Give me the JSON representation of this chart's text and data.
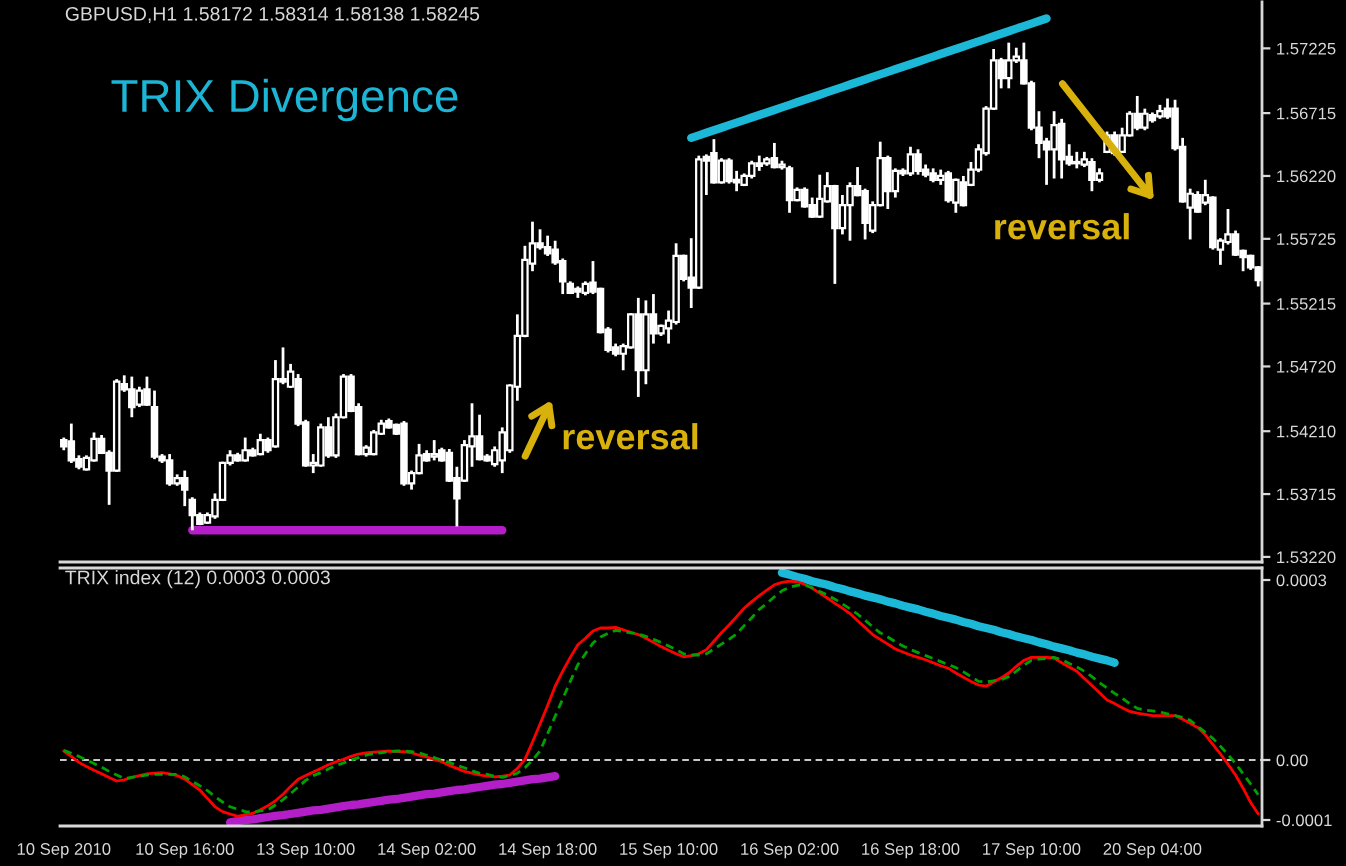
{
  "chart_data": [
    {
      "type": "candlestick",
      "title": "GBPUSD,H1 1.58172 1.58314 1.58138 1.58245",
      "subtitle": "TRIX Divergence",
      "color": "#ffffff",
      "categories": [
        null,
        null,
        null,
        null,
        null,
        null,
        null,
        null,
        null,
        null,
        null,
        null,
        null,
        null,
        null,
        null,
        null,
        null,
        null,
        null,
        null,
        null,
        null,
        null,
        null,
        null,
        null,
        null,
        null,
        null,
        null,
        null,
        null,
        null,
        null,
        null,
        null,
        null,
        null,
        null,
        null,
        null,
        null,
        null,
        null,
        null,
        null,
        null,
        null,
        null,
        null,
        null,
        null,
        null,
        null,
        null,
        null,
        null,
        null,
        null,
        null,
        null,
        null,
        null,
        null,
        null,
        null,
        null,
        null,
        null,
        null,
        null,
        null,
        null,
        null,
        null,
        null,
        null,
        null,
        null,
        null,
        null,
        null,
        null,
        null,
        null,
        null,
        null,
        null,
        null,
        null,
        null,
        null,
        null,
        null,
        null,
        null,
        null,
        null,
        null,
        null,
        null,
        null,
        null,
        null,
        null,
        null,
        null,
        null,
        null,
        null,
        null,
        null,
        null,
        null,
        null,
        null,
        null,
        null,
        null,
        null,
        null,
        null,
        null,
        null,
        null,
        null,
        null,
        null,
        null,
        null,
        null,
        null,
        null,
        null,
        null,
        null,
        null,
        null,
        null,
        null,
        null,
        null,
        null,
        null,
        null,
        null,
        null,
        null,
        null,
        null,
        null,
        null,
        null,
        null,
        null,
        null,
        null,
        null
      ],
      "ohlc": [
        [
          1.5414,
          1.5416,
          1.5406,
          1.5409
        ],
        [
          1.5413,
          1.5427,
          1.5396,
          1.5398
        ],
        [
          1.5399,
          1.5402,
          1.5391,
          1.5393
        ],
        [
          1.5391,
          1.5402,
          1.539,
          1.54
        ],
        [
          1.5398,
          1.542,
          1.5397,
          1.5415
        ],
        [
          1.5415,
          1.5418,
          1.5403,
          1.5404
        ],
        [
          1.5404,
          1.5406,
          1.5363,
          1.539
        ],
        [
          1.539,
          1.5462,
          1.5389,
          1.546
        ],
        [
          1.5458,
          1.5465,
          1.5452,
          1.5454
        ],
        [
          1.5454,
          1.5464,
          1.5432,
          1.544
        ],
        [
          1.5442,
          1.5456,
          1.544,
          1.5453
        ],
        [
          1.5454,
          1.5464,
          1.5441,
          1.5442
        ],
        [
          1.544,
          1.5453,
          1.5399,
          1.5401
        ],
        [
          1.5401,
          1.5403,
          1.5396,
          1.5398
        ],
        [
          1.5398,
          1.5403,
          1.5378,
          1.538
        ],
        [
          1.538,
          1.5387,
          1.5378,
          1.5384
        ],
        [
          1.5384,
          1.539,
          1.5362,
          1.5375
        ],
        [
          1.5367,
          1.5369,
          1.5343,
          1.5355
        ],
        [
          1.5355,
          1.5357,
          1.5347,
          1.5348
        ],
        [
          1.5349,
          1.5357,
          1.5348,
          1.5355
        ],
        [
          1.5354,
          1.5372,
          1.5352,
          1.5367
        ],
        [
          1.5367,
          1.5397,
          1.5366,
          1.5396
        ],
        [
          1.5396,
          1.5406,
          1.5394,
          1.5402
        ],
        [
          1.5402,
          1.5404,
          1.5397,
          1.5398
        ],
        [
          1.5398,
          1.5416,
          1.5397,
          1.5406
        ],
        [
          1.5406,
          1.5408,
          1.5401,
          1.5402
        ],
        [
          1.5403,
          1.5419,
          1.5402,
          1.5414
        ],
        [
          1.5414,
          1.5416,
          1.5404,
          1.5406
        ],
        [
          1.5409,
          1.5477,
          1.5408,
          1.5462
        ],
        [
          1.5462,
          1.5487,
          1.5458,
          1.546
        ],
        [
          1.5456,
          1.5474,
          1.5455,
          1.5468
        ],
        [
          1.5462,
          1.5466,
          1.5425,
          1.5427
        ],
        [
          1.5428,
          1.543,
          1.5393,
          1.5394
        ],
        [
          1.5394,
          1.5403,
          1.5388,
          1.5396
        ],
        [
          1.5394,
          1.5427,
          1.5393,
          1.5424
        ],
        [
          1.5424,
          1.5432,
          1.54,
          1.5402
        ],
        [
          1.5402,
          1.5435,
          1.54,
          1.5432
        ],
        [
          1.5432,
          1.5466,
          1.5431,
          1.5464
        ],
        [
          1.5464,
          1.5466,
          1.5436,
          1.5437
        ],
        [
          1.544,
          1.5443,
          1.5402,
          1.5403
        ],
        [
          1.5403,
          1.541,
          1.5401,
          1.5408
        ],
        [
          1.5403,
          1.5422,
          1.5402,
          1.542
        ],
        [
          1.5419,
          1.543,
          1.5418,
          1.5427
        ],
        [
          1.5429,
          1.5431,
          1.5423,
          1.5424
        ],
        [
          1.5426,
          1.5427,
          1.5418,
          1.5419
        ],
        [
          1.5427,
          1.5429,
          1.5378,
          1.538
        ],
        [
          1.538,
          1.539,
          1.5375,
          1.5388
        ],
        [
          1.5388,
          1.5411,
          1.5387,
          1.5402
        ],
        [
          1.5403,
          1.5406,
          1.5397,
          1.5398
        ],
        [
          1.5401,
          1.5414,
          1.5398,
          1.5403
        ],
        [
          1.5406,
          1.5408,
          1.5397,
          1.5398
        ],
        [
          1.5404,
          1.5407,
          1.5381,
          1.5382
        ],
        [
          1.5384,
          1.5393,
          1.5346,
          1.5368
        ],
        [
          1.5382,
          1.5414,
          1.5381,
          1.541
        ],
        [
          1.5409,
          1.5443,
          1.5393,
          1.5417
        ],
        [
          1.5417,
          1.5434,
          1.5398,
          1.5399
        ],
        [
          1.5401,
          1.5403,
          1.5397,
          1.5398
        ],
        [
          1.5395,
          1.5409,
          1.5393,
          1.5406
        ],
        [
          1.5398,
          1.5424,
          1.5388,
          1.542
        ],
        [
          1.5406,
          1.5458,
          1.5404,
          1.5457
        ],
        [
          1.5456,
          1.5513,
          1.5445,
          1.5496
        ],
        [
          1.5496,
          1.5567,
          1.5495,
          1.5556
        ],
        [
          1.5553,
          1.5586,
          1.5547,
          1.5569
        ],
        [
          1.5569,
          1.558,
          1.5564,
          1.5566
        ],
        [
          1.5566,
          1.5575,
          1.5559,
          1.5561
        ],
        [
          1.5564,
          1.5571,
          1.5552,
          1.5554
        ],
        [
          1.5555,
          1.5557,
          1.5529,
          1.5539
        ],
        [
          1.5537,
          1.5539,
          1.5529,
          1.553
        ],
        [
          1.5533,
          1.5535,
          1.5526,
          1.5531
        ],
        [
          1.553,
          1.5539,
          1.5528,
          1.5537
        ],
        [
          1.5538,
          1.5555,
          1.5529,
          1.5531
        ],
        [
          1.5533,
          1.5534,
          1.5498,
          1.5499
        ],
        [
          1.5501,
          1.5503,
          1.5483,
          1.5485
        ],
        [
          1.5487,
          1.549,
          1.548,
          1.5482
        ],
        [
          1.5482,
          1.549,
          1.5469,
          1.5488
        ],
        [
          1.5487,
          1.5514,
          1.5486,
          1.5513
        ],
        [
          1.5513,
          1.5526,
          1.5448,
          1.5469
        ],
        [
          1.5469,
          1.5524,
          1.5458,
          1.5513
        ],
        [
          1.5513,
          1.5529,
          1.549,
          1.5498
        ],
        [
          1.5498,
          1.5505,
          1.5496,
          1.5504
        ],
        [
          1.5502,
          1.5516,
          1.549,
          1.5508
        ],
        [
          1.5507,
          1.5569,
          1.5505,
          1.5559
        ],
        [
          1.5559,
          1.556,
          1.5539,
          1.5541
        ],
        [
          1.5542,
          1.5573,
          1.5518,
          1.5534
        ],
        [
          1.5534,
          1.5638,
          1.5533,
          1.5635
        ],
        [
          1.5637,
          1.5639,
          1.5607,
          1.5634
        ],
        [
          1.564,
          1.5651,
          1.5616,
          1.5617
        ],
        [
          1.5617,
          1.5636,
          1.5616,
          1.5634
        ],
        [
          1.5634,
          1.5636,
          1.5616,
          1.5618
        ],
        [
          1.5619,
          1.5626,
          1.561,
          1.5617
        ],
        [
          1.5615,
          1.5624,
          1.5614,
          1.5622
        ],
        [
          1.5622,
          1.5634,
          1.562,
          1.5632
        ],
        [
          1.5632,
          1.5638,
          1.5626,
          1.563
        ],
        [
          1.5632,
          1.5637,
          1.563,
          1.5635
        ],
        [
          1.5636,
          1.5648,
          1.5628,
          1.5629
        ],
        [
          1.5629,
          1.5634,
          1.5627,
          1.5631
        ],
        [
          1.5628,
          1.563,
          1.5593,
          1.5603
        ],
        [
          1.5603,
          1.5613,
          1.5602,
          1.5611
        ],
        [
          1.5611,
          1.5613,
          1.5597,
          1.5598
        ],
        [
          1.5599,
          1.5605,
          1.5589,
          1.559
        ],
        [
          1.559,
          1.5623,
          1.5589,
          1.5604
        ],
        [
          1.5602,
          1.5625,
          1.5601,
          1.5614
        ],
        [
          1.5614,
          1.5615,
          1.5537,
          1.5581
        ],
        [
          1.5581,
          1.5607,
          1.5576,
          1.5599
        ],
        [
          1.5599,
          1.5617,
          1.5571,
          1.5614
        ],
        [
          1.5614,
          1.5629,
          1.5606,
          1.5607
        ],
        [
          1.561,
          1.5612,
          1.5572,
          1.5585
        ],
        [
          1.5579,
          1.5602,
          1.5577,
          1.5599
        ],
        [
          1.5599,
          1.5649,
          1.5598,
          1.5636
        ],
        [
          1.5636,
          1.5638,
          1.5596,
          1.561
        ],
        [
          1.561,
          1.5628,
          1.5605,
          1.5626
        ],
        [
          1.5626,
          1.5628,
          1.5622,
          1.5624
        ],
        [
          1.5624,
          1.5645,
          1.5622,
          1.5639
        ],
        [
          1.5639,
          1.5643,
          1.5623,
          1.5626
        ],
        [
          1.5627,
          1.5631,
          1.5621,
          1.5623
        ],
        [
          1.5624,
          1.5628,
          1.5617,
          1.5619
        ],
        [
          1.5619,
          1.5627,
          1.5615,
          1.5622
        ],
        [
          1.5624,
          1.5626,
          1.5601,
          1.5603
        ],
        [
          1.5601,
          1.562,
          1.5593,
          1.5619
        ],
        [
          1.5617,
          1.5622,
          1.5598,
          1.5599
        ],
        [
          1.5615,
          1.5633,
          1.5614,
          1.5627
        ],
        [
          1.5627,
          1.5647,
          1.5625,
          1.5643
        ],
        [
          1.564,
          1.5677,
          1.5638,
          1.5675
        ],
        [
          1.5675,
          1.5722,
          1.5674,
          1.5713
        ],
        [
          1.5713,
          1.5715,
          1.5691,
          1.5699
        ],
        [
          1.5699,
          1.5727,
          1.5691,
          1.5713
        ],
        [
          1.5713,
          1.5723,
          1.5711,
          1.5716
        ],
        [
          1.5713,
          1.5727,
          1.5694,
          1.5695
        ],
        [
          1.5695,
          1.5697,
          1.5658,
          1.566
        ],
        [
          1.566,
          1.5673,
          1.5636,
          1.5648
        ],
        [
          1.5649,
          1.5652,
          1.5615,
          1.5643
        ],
        [
          1.5643,
          1.5673,
          1.562,
          1.5662
        ],
        [
          1.5663,
          1.5667,
          1.562,
          1.5635
        ],
        [
          1.5637,
          1.5647,
          1.563,
          1.5632
        ],
        [
          1.5633,
          1.5641,
          1.5628,
          1.5632
        ],
        [
          1.5631,
          1.5641,
          1.5629,
          1.5635
        ],
        [
          1.5633,
          1.5636,
          1.561,
          1.5619
        ],
        [
          1.5619,
          1.5628,
          1.5617,
          1.5624
        ],
        [
          1.5641,
          1.5657,
          1.564,
          1.5654
        ],
        [
          1.5654,
          1.5657,
          1.5638,
          1.564
        ],
        [
          1.5641,
          1.566,
          1.564,
          1.5654
        ],
        [
          1.5654,
          1.5673,
          1.5653,
          1.5671
        ],
        [
          1.5671,
          1.5685,
          1.5658,
          1.566
        ],
        [
          1.566,
          1.5675,
          1.5658,
          1.5671
        ],
        [
          1.567,
          1.5672,
          1.5664,
          1.5666
        ],
        [
          1.5669,
          1.5678,
          1.5667,
          1.5673
        ],
        [
          1.5675,
          1.5683,
          1.5667,
          1.5669
        ],
        [
          1.5675,
          1.5682,
          1.5642,
          1.5644
        ],
        [
          1.5645,
          1.5652,
          1.5601,
          1.5602
        ],
        [
          1.5597,
          1.5612,
          1.5572,
          1.5608
        ],
        [
          1.5607,
          1.561,
          1.5593,
          1.5594
        ],
        [
          1.5601,
          1.5619,
          1.5599,
          1.5607
        ],
        [
          1.5605,
          1.5606,
          1.5564,
          1.5566
        ],
        [
          1.5564,
          1.5573,
          1.5552,
          1.5571
        ],
        [
          1.557,
          1.5596,
          1.5568,
          1.5576
        ],
        [
          1.5576,
          1.5579,
          1.5559,
          1.556
        ],
        [
          1.5563,
          1.5564,
          1.5547,
          1.5558
        ],
        [
          1.5559,
          1.556,
          1.5548,
          1.555
        ],
        [
          1.555,
          1.5551,
          1.5535,
          1.554
        ]
      ],
      "series": [
        {
          "type": "line",
          "color": "#1cb8d8",
          "values": [
            null,
            null,
            null,
            null,
            null,
            null,
            null,
            null,
            null,
            null,
            null,
            null,
            null,
            null,
            null,
            null,
            null,
            null,
            null,
            null,
            null,
            null,
            null,
            null,
            null,
            null,
            null,
            null,
            null,
            null,
            null,
            null,
            null,
            null,
            null,
            null,
            null,
            null,
            null,
            null,
            null,
            null,
            null,
            null,
            null,
            null,
            null,
            null,
            null,
            null,
            null,
            null,
            null,
            null,
            null,
            null,
            null,
            null,
            null,
            null,
            null,
            null,
            null,
            null,
            null,
            null,
            null,
            null,
            null,
            null,
            null,
            null,
            null,
            null,
            null,
            null,
            null,
            null,
            null,
            null,
            null,
            null,
            null,
            1.5652,
            1.5654,
            1.5656,
            1.5658,
            1.566,
            1.5662,
            1.5664,
            1.5666,
            1.5668,
            1.567,
            1.5672,
            1.5674,
            1.5676,
            1.5678,
            1.568,
            1.5682,
            1.5684,
            1.5686,
            1.5688,
            1.569,
            1.5692,
            1.5694,
            1.5696,
            1.5698,
            1.57,
            1.5702,
            1.5704,
            1.5706,
            1.5708,
            1.571,
            1.5712,
            1.5714,
            1.5716,
            1.5718,
            1.572,
            1.5722,
            1.5724,
            1.5726,
            1.5728,
            1.573,
            1.5732,
            1.5734,
            1.5736,
            1.5738,
            1.574,
            1.5742,
            1.5744,
            1.5746,
            null,
            null,
            null,
            null,
            null,
            null,
            null,
            null,
            null,
            null,
            null,
            null,
            null,
            null,
            null,
            null,
            null,
            null,
            null,
            null,
            null,
            null,
            null,
            null,
            null,
            null,
            null,
            null
          ]
        },
        {
          "type": "line",
          "color": "#b41ec8",
          "values": [
            null,
            null,
            null,
            null,
            null,
            null,
            null,
            null,
            null,
            null,
            null,
            null,
            null,
            null,
            null,
            null,
            null,
            1.5343,
            1.5343,
            1.5343,
            1.5343,
            1.5343,
            1.5343,
            1.5343,
            1.5343,
            1.5343,
            1.5343,
            1.5343,
            1.5343,
            1.5343,
            1.5343,
            1.5343,
            1.5343,
            1.5343,
            1.5343,
            1.5343,
            1.5343,
            1.5343,
            1.5343,
            1.5343,
            1.5343,
            1.5343,
            1.5343,
            1.5343,
            1.5343,
            1.5343,
            1.5343,
            1.5343,
            1.5343,
            1.5343,
            1.5343,
            1.5343,
            1.5343,
            1.5343,
            1.5343,
            1.5343,
            1.5343,
            1.5343,
            1.5343,
            null,
            null,
            null,
            null,
            null,
            null,
            null,
            null,
            null,
            null,
            null,
            null,
            null,
            null,
            null,
            null,
            null,
            null,
            null,
            null,
            null,
            null,
            null,
            null,
            null,
            null,
            null,
            null,
            null,
            null,
            null,
            null,
            null,
            null,
            null,
            null,
            null,
            null,
            null,
            null,
            null,
            null,
            null,
            null,
            null,
            null,
            null,
            null,
            null,
            null,
            null,
            null,
            null,
            null,
            null,
            null,
            null,
            null,
            null,
            null,
            null,
            null,
            null,
            null,
            null,
            null,
            null,
            null,
            null,
            null,
            null,
            null,
            null,
            null,
            null,
            null,
            null,
            null,
            null,
            null,
            null,
            null,
            null,
            null,
            null,
            null,
            null,
            null,
            null,
            null,
            null,
            null,
            null,
            null,
            null,
            null,
            null,
            null,
            null,
            null
          ]
        }
      ],
      "annotations": [
        "reversal",
        "reversal"
      ],
      "ylim": [
        1.5318,
        1.5759
      ],
      "yticks": [
        1.57225,
        1.56715,
        {
          "value": 1.5622,
          "label": "1.56220"
        },
        1.55725,
        1.55215,
        {
          "value": 1.5472,
          "label": "1.54720"
        },
        {
          "value": 1.5421,
          "label": "1.54210"
        },
        1.53715,
        {
          "value": 1.5322,
          "label": "1.53220"
        }
      ]
    },
    {
      "type": "line",
      "title": "TRIX index (12) 0.0003 0.0003",
      "categories": [
        "10 Sep 2010",
        null,
        null,
        null,
        null,
        null,
        null,
        null,
        null,
        null,
        null,
        null,
        null,
        null,
        null,
        null,
        "10 Sep 16:00",
        null,
        null,
        null,
        null,
        null,
        null,
        null,
        null,
        null,
        null,
        null,
        null,
        null,
        null,
        null,
        "13 Sep 10:00",
        null,
        null,
        null,
        null,
        null,
        null,
        null,
        null,
        null,
        null,
        null,
        null,
        null,
        null,
        null,
        "14 Sep 02:00",
        null,
        null,
        null,
        null,
        null,
        null,
        null,
        null,
        null,
        null,
        null,
        null,
        null,
        null,
        null,
        "14 Sep 18:00",
        null,
        null,
        null,
        null,
        null,
        null,
        null,
        null,
        null,
        null,
        null,
        null,
        null,
        null,
        null,
        "15 Sep 10:00",
        null,
        null,
        null,
        null,
        null,
        null,
        null,
        null,
        null,
        null,
        null,
        null,
        null,
        null,
        null,
        "16 Sep 02:00",
        null,
        null,
        null,
        null,
        null,
        null,
        null,
        null,
        null,
        null,
        null,
        null,
        null,
        null,
        null,
        "16 Sep 18:00",
        null,
        null,
        null,
        null,
        null,
        null,
        null,
        null,
        null,
        null,
        null,
        null,
        null,
        null,
        null,
        "17 Sep 10:00",
        null,
        null,
        null,
        null,
        null,
        null,
        null,
        null,
        null,
        null,
        null,
        null,
        null,
        null,
        null,
        "20 Sep 04:00",
        null,
        null,
        null,
        null,
        null,
        null,
        null,
        null,
        null,
        null,
        null,
        null,
        null,
        null
      ],
      "series": [
        {
          "color": "#ff0000",
          "values": [
            1.5e-05,
            6e-06,
            -4e-06,
            -1.1e-05,
            -1.7e-05,
            -2.3e-05,
            -2.9e-05,
            -3.5e-05,
            -3.3e-05,
            -2.9e-05,
            -2.6e-05,
            -2.3e-05,
            -2.2e-05,
            -2.1e-05,
            -2.3e-05,
            -2.6e-05,
            -3.2e-05,
            -4.1e-05,
            -5e-05,
            -6.4e-05,
            -7.8e-05,
            -8.6e-05,
            -9e-05,
            -9.4e-05,
            -9.1e-05,
            -8.9e-05,
            -8.3e-05,
            -7.6e-05,
            -6.8e-05,
            -5.7e-05,
            -4.4e-05,
            -3.2e-05,
            -2.6e-05,
            -2e-05,
            -1.4e-05,
            -8e-06,
            -3e-06,
            1e-06,
            6e-06,
            1e-05,
            1.2e-05,
            1.3e-05,
            1.4e-05,
            1.5e-05,
            1.4e-05,
            1.4e-05,
            1.2e-05,
            8e-06,
            5e-06,
            1e-06,
            -3e-06,
            -9e-06,
            -1.4e-05,
            -1.9e-05,
            -2.2e-05,
            -2.5e-05,
            -2.7e-05,
            -2.8e-05,
            -2.7e-05,
            -2.5e-05,
            -1.4e-05,
            1e-06,
            3e-05,
            6e-05,
            9.1e-05,
            0.000123,
            0.000148,
            0.000171,
            0.000192,
            0.000203,
            0.000215,
            0.00022,
            0.00022,
            0.000221,
            0.000217,
            0.000213,
            0.000209,
            0.000203,
            0.000196,
            0.000189,
            0.000183,
            0.000177,
            0.000172,
            0.000174,
            0.000177,
            0.000184,
            0.000198,
            0.000212,
            0.000225,
            0.000239,
            0.000253,
            0.000264,
            0.000274,
            0.000283,
            0.000292,
            0.000296,
            0.000298,
            0.000297,
            0.000293,
            0.000286,
            0.000278,
            0.00027,
            0.000261,
            0.000253,
            0.000244,
            0.000232,
            0.000221,
            0.000209,
            0.000201,
            0.000193,
            0.000185,
            0.00018,
            0.000175,
            0.000171,
            0.000167,
            0.000162,
            0.000157,
            0.000153,
            0.000145,
            0.000138,
            0.000131,
            0.000125,
            0.000123,
            0.00013,
            0.000137,
            0.000145,
            0.000156,
            0.000166,
            0.000171,
            0.000171,
            0.000171,
            0.00017,
            0.000162,
            0.000155,
            0.000148,
            0.000136,
            0.000124,
            0.000112,
            0.0001,
            9.4e-05,
            8.7e-05,
            8.1e-05,
            7.8e-05,
            7.6e-05,
            7.4e-05,
            7.4e-05,
            7.4e-05,
            7.4e-05,
            6.8e-05,
            6.1e-05,
            5.4e-05,
            4.2e-05,
            2.6e-05,
            1e-05,
            -7e-06,
            -2.5e-05,
            -4.7e-05,
            -7.1e-05,
            -9e-05
          ]
        },
        {
          "color": "#00a000",
          "line_style": "dashed",
          "values": [
            1.6e-05,
            1.1e-05,
            6e-06,
            0,
            -6e-06,
            -1.2e-05,
            -1.9e-05,
            -2.5e-05,
            -3.1e-05,
            -2.9e-05,
            -2.7e-05,
            -2.5e-05,
            -2.4e-05,
            -2.4e-05,
            -2.4e-05,
            -2.4e-05,
            -2.8e-05,
            -3.6e-05,
            -4.3e-05,
            -5.1e-05,
            -6.1e-05,
            -7e-05,
            -7.8e-05,
            -8.2e-05,
            -8.6e-05,
            -8.7e-05,
            -8.5e-05,
            -8.3e-05,
            -7.5e-05,
            -6.6e-05,
            -5.6e-05,
            -4.5e-05,
            -3.4e-05,
            -2.6e-05,
            -2.1e-05,
            -1.5e-05,
            -9e-06,
            -5e-06,
            0,
            4e-06,
            8e-06,
            1.1e-05,
            1.2e-05,
            1.4e-05,
            1.5e-05,
            1.5e-05,
            1.4e-05,
            1.2e-05,
            8e-06,
            4e-06,
            0,
            -4e-06,
            -9e-06,
            -1.3e-05,
            -1.8e-05,
            -2.2e-05,
            -2.4e-05,
            -2.7e-05,
            -2.9e-05,
            -2.6e-05,
            -2.2e-05,
            -1.3e-05,
            0,
            1.5e-05,
            4.4e-05,
            7.3e-05,
            0.000102,
            0.000131,
            0.000159,
            0.000177,
            0.000195,
            0.000205,
            0.000211,
            0.000216,
            0.000214,
            0.000212,
            0.00021,
            0.000206,
            0.000201,
            0.000196,
            0.00019,
            0.000184,
            0.000177,
            0.000175,
            0.000175,
            0.000177,
            0.000185,
            0.000193,
            0.000201,
            0.00021,
            0.000224,
            0.000237,
            0.000251,
            0.000261,
            0.000272,
            0.000282,
            0.000288,
            0.000291,
            0.000292,
            0.000287,
            0.000281,
            0.000275,
            0.000268,
            0.00026,
            0.000252,
            0.000243,
            0.000233,
            0.000222,
            0.000212,
            0.000205,
            0.000197,
            0.00019,
            0.000184,
            0.000179,
            0.000174,
            0.000169,
            0.000164,
            0.000159,
            0.000154,
            0.000147,
            0.000139,
            0.000131,
            0.00013,
            0.000132,
            0.000134,
            0.000139,
            0.000148,
            0.000158,
            0.000166,
            0.000168,
            0.000169,
            0.000171,
            0.000167,
            0.000161,
            0.000155,
            0.000148,
            0.000139,
            0.000129,
            0.00012,
            0.000111,
            0.000103,
            9.4e-05,
            8.6e-05,
            8.3e-05,
            8.2e-05,
            8e-05,
            7.7e-05,
            7.4e-05,
            7.1e-05,
            6.6e-05,
            5.6e-05,
            4.6e-05,
            3.6e-05,
            2.3e-05,
            9e-06,
            -6e-06,
            -2.3e-05,
            -4e-05,
            -5.8e-05
          ]
        },
        {
          "color": "#1cb8d8",
          "values": [
            null,
            null,
            null,
            null,
            null,
            null,
            null,
            null,
            null,
            null,
            null,
            null,
            null,
            null,
            null,
            null,
            null,
            null,
            null,
            null,
            null,
            null,
            null,
            null,
            null,
            null,
            null,
            null,
            null,
            null,
            null,
            null,
            null,
            null,
            null,
            null,
            null,
            null,
            null,
            null,
            null,
            null,
            null,
            null,
            null,
            null,
            null,
            null,
            null,
            null,
            null,
            null,
            null,
            null,
            null,
            null,
            null,
            null,
            null,
            null,
            null,
            null,
            null,
            null,
            null,
            null,
            null,
            null,
            null,
            null,
            null,
            null,
            null,
            null,
            null,
            null,
            null,
            null,
            null,
            null,
            null,
            null,
            null,
            null,
            null,
            null,
            null,
            null,
            null,
            null,
            null,
            null,
            null,
            null,
            null,
            0.000312,
            0.000309,
            0.000305,
            0.000302,
            0.000298,
            0.000295,
            0.000292,
            0.000288,
            0.000285,
            0.000281,
            0.000278,
            0.000274,
            0.000271,
            0.000268,
            0.000264,
            0.000261,
            0.000257,
            0.000254,
            0.000251,
            0.000247,
            0.000244,
            0.00024,
            0.000237,
            0.000234,
            0.00023,
            0.000227,
            0.000223,
            0.00022,
            0.000217,
            0.000213,
            0.00021,
            0.000206,
            0.000203,
            0.0002,
            0.000196,
            0.000193,
            0.000189,
            0.000186,
            0.000183,
            0.000179,
            0.000176,
            0.000172,
            0.000169,
            0.000166,
            0.000162,
            null,
            null,
            null,
            null,
            null,
            null,
            null,
            null,
            null,
            null,
            null,
            null,
            null,
            null,
            null,
            null,
            null,
            null,
            null
          ]
        },
        {
          "color": "#b41ec8",
          "values": [
            null,
            null,
            null,
            null,
            null,
            null,
            null,
            null,
            null,
            null,
            null,
            null,
            null,
            null,
            null,
            null,
            null,
            null,
            null,
            null,
            null,
            null,
            -0.000104,
            -0.000102,
            -0.0001,
            -9.9e-05,
            -9.7e-05,
            -9.5e-05,
            -9.3e-05,
            -9.2e-05,
            -9e-05,
            -8.8e-05,
            -8.6e-05,
            -8.4e-05,
            -8.3e-05,
            -8.1e-05,
            -7.9e-05,
            -7.7e-05,
            -7.5e-05,
            -7.4e-05,
            -7.2e-05,
            -7e-05,
            -6.8e-05,
            -6.6e-05,
            -6.5e-05,
            -6.3e-05,
            -6.1e-05,
            -5.9e-05,
            -5.7e-05,
            -5.6e-05,
            -5.4e-05,
            -5.2e-05,
            -5e-05,
            -4.9e-05,
            -4.7e-05,
            -4.5e-05,
            -4.3e-05,
            -4.1e-05,
            -4e-05,
            -3.8e-05,
            -3.6e-05,
            -3.4e-05,
            -3.2e-05,
            -3.1e-05,
            -2.9e-05,
            -2.7e-05,
            null,
            null,
            null,
            null,
            null,
            null,
            null,
            null,
            null,
            null,
            null,
            null,
            null,
            null,
            null,
            null,
            null,
            null,
            null,
            null,
            null,
            null,
            null,
            null,
            null,
            null,
            null,
            null,
            null,
            null,
            null,
            null,
            null,
            null,
            null,
            null,
            null,
            null,
            null,
            null,
            null,
            null,
            null,
            null,
            null,
            null,
            null,
            null,
            null,
            null,
            null,
            null,
            null,
            null,
            null,
            null,
            null,
            null,
            null,
            null,
            null,
            null,
            null,
            null,
            null,
            null,
            null,
            null,
            null,
            null,
            null,
            null,
            null,
            null,
            null,
            null,
            null,
            null,
            null,
            null,
            null,
            null,
            null,
            null,
            null,
            null,
            null,
            null,
            null,
            null,
            null,
            null,
            null
          ]
        }
      ],
      "ref_lines": [
        {
          "axis": "y",
          "value": 0,
          "color": "#c8c8c8",
          "line_style": "dashed"
        }
      ],
      "ylim": [
        -0.00011,
        0.00032
      ],
      "yticks": [
        0.0003,
        {
          "value": 0,
          "label": "0.00"
        },
        -0.0001
      ]
    }
  ]
}
